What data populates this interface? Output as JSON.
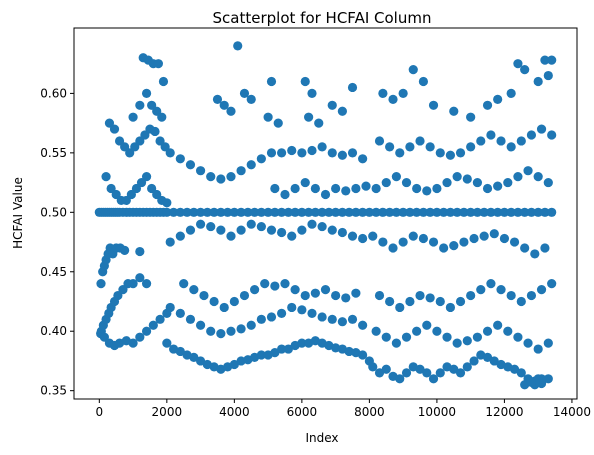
{
  "chart_data": {
    "type": "scatter",
    "title": "Scatterplot for HCFAI Column",
    "xlabel": "Index",
    "ylabel": "HCFAI Value",
    "xlim": [
      -750,
      14150
    ],
    "ylim": [
      0.343,
      0.655
    ],
    "xticks": [
      0,
      2000,
      4000,
      6000,
      8000,
      10000,
      12000,
      14000
    ],
    "yticks": [
      0.35,
      0.4,
      0.45,
      0.5,
      0.55,
      0.6
    ],
    "ytick_labels": [
      "0.35",
      "0.40",
      "0.45",
      "0.50",
      "0.55",
      "0.60"
    ],
    "grid": false,
    "marker_color": "#1f77b4",
    "points": [
      [
        0,
        0.5
      ],
      [
        60,
        0.5
      ],
      [
        120,
        0.5
      ],
      [
        180,
        0.5
      ],
      [
        240,
        0.5
      ],
      [
        300,
        0.5
      ],
      [
        360,
        0.5
      ],
      [
        420,
        0.5
      ],
      [
        480,
        0.5
      ],
      [
        540,
        0.5
      ],
      [
        600,
        0.5
      ],
      [
        700,
        0.5
      ],
      [
        800,
        0.5
      ],
      [
        900,
        0.5
      ],
      [
        1000,
        0.5
      ],
      [
        1100,
        0.5
      ],
      [
        1200,
        0.5
      ],
      [
        1300,
        0.5
      ],
      [
        1400,
        0.5
      ],
      [
        1500,
        0.5
      ],
      [
        1600,
        0.5
      ],
      [
        1700,
        0.5
      ],
      [
        1800,
        0.5
      ],
      [
        1900,
        0.5
      ],
      [
        2000,
        0.5
      ],
      [
        2200,
        0.5
      ],
      [
        2400,
        0.5
      ],
      [
        2600,
        0.5
      ],
      [
        2800,
        0.5
      ],
      [
        3000,
        0.5
      ],
      [
        3200,
        0.5
      ],
      [
        3400,
        0.5
      ],
      [
        3600,
        0.5
      ],
      [
        3800,
        0.5
      ],
      [
        4000,
        0.5
      ],
      [
        4200,
        0.5
      ],
      [
        4400,
        0.5
      ],
      [
        4600,
        0.5
      ],
      [
        4800,
        0.5
      ],
      [
        5000,
        0.5
      ],
      [
        5200,
        0.5
      ],
      [
        5400,
        0.5
      ],
      [
        5600,
        0.5
      ],
      [
        5800,
        0.5
      ],
      [
        6000,
        0.5
      ],
      [
        6200,
        0.5
      ],
      [
        6400,
        0.5
      ],
      [
        6600,
        0.5
      ],
      [
        6800,
        0.5
      ],
      [
        7000,
        0.5
      ],
      [
        7200,
        0.5
      ],
      [
        7400,
        0.5
      ],
      [
        7600,
        0.5
      ],
      [
        7800,
        0.5
      ],
      [
        8000,
        0.5
      ],
      [
        8200,
        0.5
      ],
      [
        8400,
        0.5
      ],
      [
        8600,
        0.5
      ],
      [
        8800,
        0.5
      ],
      [
        9000,
        0.5
      ],
      [
        9200,
        0.5
      ],
      [
        9400,
        0.5
      ],
      [
        9600,
        0.5
      ],
      [
        9800,
        0.5
      ],
      [
        10000,
        0.5
      ],
      [
        10200,
        0.5
      ],
      [
        10400,
        0.5
      ],
      [
        10600,
        0.5
      ],
      [
        10800,
        0.5
      ],
      [
        11000,
        0.5
      ],
      [
        11200,
        0.5
      ],
      [
        11400,
        0.5
      ],
      [
        11600,
        0.5
      ],
      [
        11800,
        0.5
      ],
      [
        12000,
        0.5
      ],
      [
        12200,
        0.5
      ],
      [
        12400,
        0.5
      ],
      [
        12600,
        0.5
      ],
      [
        12800,
        0.5
      ],
      [
        13000,
        0.5
      ],
      [
        13200,
        0.5
      ],
      [
        13400,
        0.5
      ],
      [
        50,
        0.44
      ],
      [
        100,
        0.45
      ],
      [
        150,
        0.455
      ],
      [
        200,
        0.46
      ],
      [
        260,
        0.465
      ],
      [
        320,
        0.47
      ],
      [
        400,
        0.465
      ],
      [
        500,
        0.47
      ],
      [
        620,
        0.47
      ],
      [
        750,
        0.468
      ],
      [
        1200,
        0.467
      ],
      [
        60,
        0.4
      ],
      [
        120,
        0.405
      ],
      [
        200,
        0.41
      ],
      [
        280,
        0.415
      ],
      [
        350,
        0.42
      ],
      [
        450,
        0.425
      ],
      [
        550,
        0.43
      ],
      [
        700,
        0.435
      ],
      [
        850,
        0.44
      ],
      [
        1000,
        0.44
      ],
      [
        1200,
        0.445
      ],
      [
        1400,
        0.44
      ],
      [
        40,
        0.398
      ],
      [
        150,
        0.395
      ],
      [
        300,
        0.39
      ],
      [
        450,
        0.388
      ],
      [
        600,
        0.39
      ],
      [
        800,
        0.392
      ],
      [
        1000,
        0.39
      ],
      [
        1200,
        0.395
      ],
      [
        1400,
        0.4
      ],
      [
        1600,
        0.405
      ],
      [
        1800,
        0.41
      ],
      [
        2000,
        0.415
      ],
      [
        2000,
        0.39
      ],
      [
        2200,
        0.385
      ],
      [
        2400,
        0.383
      ],
      [
        2600,
        0.38
      ],
      [
        2800,
        0.378
      ],
      [
        3000,
        0.375
      ],
      [
        3200,
        0.372
      ],
      [
        3400,
        0.37
      ],
      [
        3600,
        0.368
      ],
      [
        3800,
        0.37
      ],
      [
        4000,
        0.372
      ],
      [
        4200,
        0.375
      ],
      [
        4400,
        0.376
      ],
      [
        4600,
        0.378
      ],
      [
        4800,
        0.38
      ],
      [
        5000,
        0.38
      ],
      [
        5200,
        0.382
      ],
      [
        5400,
        0.385
      ],
      [
        5600,
        0.385
      ],
      [
        5800,
        0.388
      ],
      [
        6000,
        0.39
      ],
      [
        6200,
        0.39
      ],
      [
        6400,
        0.392
      ],
      [
        6600,
        0.39
      ],
      [
        6800,
        0.388
      ],
      [
        7000,
        0.386
      ],
      [
        7200,
        0.385
      ],
      [
        7400,
        0.383
      ],
      [
        7600,
        0.382
      ],
      [
        7800,
        0.38
      ],
      [
        8000,
        0.375
      ],
      [
        2100,
        0.42
      ],
      [
        2400,
        0.415
      ],
      [
        2700,
        0.41
      ],
      [
        3000,
        0.405
      ],
      [
        3300,
        0.4
      ],
      [
        3600,
        0.398
      ],
      [
        3900,
        0.4
      ],
      [
        4200,
        0.402
      ],
      [
        4500,
        0.405
      ],
      [
        4800,
        0.41
      ],
      [
        5100,
        0.412
      ],
      [
        5400,
        0.415
      ],
      [
        5700,
        0.42
      ],
      [
        6000,
        0.418
      ],
      [
        6300,
        0.415
      ],
      [
        6600,
        0.412
      ],
      [
        6900,
        0.41
      ],
      [
        7200,
        0.408
      ],
      [
        7500,
        0.41
      ],
      [
        7800,
        0.405
      ],
      [
        2500,
        0.44
      ],
      [
        2800,
        0.435
      ],
      [
        3100,
        0.43
      ],
      [
        3400,
        0.425
      ],
      [
        3700,
        0.42
      ],
      [
        4000,
        0.425
      ],
      [
        4300,
        0.43
      ],
      [
        4600,
        0.435
      ],
      [
        4900,
        0.44
      ],
      [
        5200,
        0.438
      ],
      [
        5500,
        0.44
      ],
      [
        5800,
        0.435
      ],
      [
        6100,
        0.43
      ],
      [
        6400,
        0.432
      ],
      [
        6700,
        0.435
      ],
      [
        7000,
        0.43
      ],
      [
        7300,
        0.428
      ],
      [
        7600,
        0.432
      ],
      [
        200,
        0.53
      ],
      [
        350,
        0.52
      ],
      [
        500,
        0.515
      ],
      [
        650,
        0.51
      ],
      [
        800,
        0.51
      ],
      [
        950,
        0.515
      ],
      [
        1100,
        0.52
      ],
      [
        1250,
        0.525
      ],
      [
        1400,
        0.53
      ],
      [
        1550,
        0.52
      ],
      [
        1700,
        0.515
      ],
      [
        1850,
        0.51
      ],
      [
        2000,
        0.508
      ],
      [
        300,
        0.575
      ],
      [
        450,
        0.57
      ],
      [
        600,
        0.56
      ],
      [
        750,
        0.555
      ],
      [
        900,
        0.55
      ],
      [
        1050,
        0.555
      ],
      [
        1200,
        0.56
      ],
      [
        1350,
        0.565
      ],
      [
        1500,
        0.57
      ],
      [
        1650,
        0.568
      ],
      [
        1800,
        0.56
      ],
      [
        1950,
        0.555
      ],
      [
        2100,
        0.55
      ],
      [
        2400,
        0.545
      ],
      [
        2700,
        0.54
      ],
      [
        3000,
        0.535
      ],
      [
        3300,
        0.53
      ],
      [
        3600,
        0.528
      ],
      [
        3900,
        0.53
      ],
      [
        4200,
        0.535
      ],
      [
        4500,
        0.54
      ],
      [
        4800,
        0.545
      ],
      [
        5100,
        0.55
      ],
      [
        5400,
        0.55
      ],
      [
        5700,
        0.552
      ],
      [
        6000,
        0.55
      ],
      [
        6300,
        0.552
      ],
      [
        6600,
        0.555
      ],
      [
        6900,
        0.55
      ],
      [
        7200,
        0.548
      ],
      [
        7500,
        0.55
      ],
      [
        7800,
        0.545
      ],
      [
        1000,
        0.58
      ],
      [
        1200,
        0.59
      ],
      [
        1400,
        0.6
      ],
      [
        1550,
        0.59
      ],
      [
        1700,
        0.585
      ],
      [
        1850,
        0.58
      ],
      [
        1300,
        0.63
      ],
      [
        1450,
        0.628
      ],
      [
        1600,
        0.625
      ],
      [
        1750,
        0.625
      ],
      [
        1900,
        0.61
      ],
      [
        3500,
        0.595
      ],
      [
        3700,
        0.59
      ],
      [
        3900,
        0.585
      ],
      [
        4100,
        0.64
      ],
      [
        4300,
        0.6
      ],
      [
        4500,
        0.595
      ],
      [
        5100,
        0.61
      ],
      [
        5000,
        0.58
      ],
      [
        5300,
        0.575
      ],
      [
        6100,
        0.61
      ],
      [
        6300,
        0.6
      ],
      [
        6200,
        0.58
      ],
      [
        6500,
        0.575
      ],
      [
        6900,
        0.59
      ],
      [
        7200,
        0.585
      ],
      [
        7500,
        0.605
      ],
      [
        2100,
        0.475
      ],
      [
        2400,
        0.48
      ],
      [
        2700,
        0.485
      ],
      [
        3000,
        0.49
      ],
      [
        3300,
        0.488
      ],
      [
        3600,
        0.485
      ],
      [
        3900,
        0.48
      ],
      [
        4200,
        0.485
      ],
      [
        4500,
        0.49
      ],
      [
        4800,
        0.488
      ],
      [
        5100,
        0.485
      ],
      [
        5400,
        0.483
      ],
      [
        5700,
        0.48
      ],
      [
        6000,
        0.485
      ],
      [
        6300,
        0.49
      ],
      [
        6600,
        0.488
      ],
      [
        6900,
        0.485
      ],
      [
        7200,
        0.483
      ],
      [
        7500,
        0.48
      ],
      [
        7800,
        0.478
      ],
      [
        5200,
        0.52
      ],
      [
        5500,
        0.515
      ],
      [
        5800,
        0.52
      ],
      [
        6100,
        0.525
      ],
      [
        6400,
        0.52
      ],
      [
        6700,
        0.515
      ],
      [
        7000,
        0.52
      ],
      [
        7300,
        0.518
      ],
      [
        7600,
        0.52
      ],
      [
        7900,
        0.522
      ],
      [
        8100,
        0.37
      ],
      [
        8300,
        0.365
      ],
      [
        8500,
        0.368
      ],
      [
        8700,
        0.362
      ],
      [
        8900,
        0.36
      ],
      [
        9100,
        0.365
      ],
      [
        9300,
        0.37
      ],
      [
        9500,
        0.368
      ],
      [
        9700,
        0.365
      ],
      [
        9900,
        0.36
      ],
      [
        10100,
        0.365
      ],
      [
        10300,
        0.37
      ],
      [
        10500,
        0.368
      ],
      [
        10700,
        0.365
      ],
      [
        10900,
        0.37
      ],
      [
        11100,
        0.375
      ],
      [
        11300,
        0.38
      ],
      [
        11500,
        0.378
      ],
      [
        11700,
        0.375
      ],
      [
        11900,
        0.372
      ],
      [
        12100,
        0.37
      ],
      [
        12300,
        0.368
      ],
      [
        12500,
        0.365
      ],
      [
        12700,
        0.36
      ],
      [
        12900,
        0.358
      ],
      [
        13100,
        0.356
      ],
      [
        13300,
        0.36
      ],
      [
        8200,
        0.4
      ],
      [
        8500,
        0.395
      ],
      [
        8800,
        0.39
      ],
      [
        9100,
        0.395
      ],
      [
        9400,
        0.4
      ],
      [
        9700,
        0.405
      ],
      [
        10000,
        0.4
      ],
      [
        10300,
        0.395
      ],
      [
        10600,
        0.39
      ],
      [
        10900,
        0.392
      ],
      [
        11200,
        0.395
      ],
      [
        11500,
        0.4
      ],
      [
        11800,
        0.405
      ],
      [
        12100,
        0.4
      ],
      [
        12400,
        0.395
      ],
      [
        12700,
        0.39
      ],
      [
        13000,
        0.385
      ],
      [
        13300,
        0.39
      ],
      [
        8300,
        0.43
      ],
      [
        8600,
        0.425
      ],
      [
        8900,
        0.42
      ],
      [
        9200,
        0.425
      ],
      [
        9500,
        0.43
      ],
      [
        9800,
        0.428
      ],
      [
        10100,
        0.425
      ],
      [
        10400,
        0.42
      ],
      [
        10700,
        0.425
      ],
      [
        11000,
        0.43
      ],
      [
        11300,
        0.435
      ],
      [
        11600,
        0.44
      ],
      [
        11900,
        0.435
      ],
      [
        12200,
        0.43
      ],
      [
        12500,
        0.425
      ],
      [
        12800,
        0.43
      ],
      [
        13100,
        0.435
      ],
      [
        13400,
        0.44
      ],
      [
        8100,
        0.48
      ],
      [
        8400,
        0.475
      ],
      [
        8700,
        0.47
      ],
      [
        9000,
        0.475
      ],
      [
        9300,
        0.48
      ],
      [
        9600,
        0.478
      ],
      [
        9900,
        0.475
      ],
      [
        10200,
        0.47
      ],
      [
        10500,
        0.472
      ],
      [
        10800,
        0.475
      ],
      [
        11100,
        0.478
      ],
      [
        11400,
        0.48
      ],
      [
        11700,
        0.482
      ],
      [
        12000,
        0.478
      ],
      [
        12300,
        0.475
      ],
      [
        12600,
        0.47
      ],
      [
        12900,
        0.465
      ],
      [
        13200,
        0.47
      ],
      [
        8200,
        0.52
      ],
      [
        8500,
        0.525
      ],
      [
        8800,
        0.53
      ],
      [
        9100,
        0.525
      ],
      [
        9400,
        0.52
      ],
      [
        9700,
        0.518
      ],
      [
        10000,
        0.52
      ],
      [
        10300,
        0.525
      ],
      [
        10600,
        0.53
      ],
      [
        10900,
        0.528
      ],
      [
        11200,
        0.525
      ],
      [
        11500,
        0.52
      ],
      [
        11800,
        0.522
      ],
      [
        12100,
        0.525
      ],
      [
        12400,
        0.53
      ],
      [
        12700,
        0.535
      ],
      [
        13000,
        0.53
      ],
      [
        13300,
        0.525
      ],
      [
        8300,
        0.56
      ],
      [
        8600,
        0.555
      ],
      [
        8900,
        0.55
      ],
      [
        9200,
        0.555
      ],
      [
        9500,
        0.56
      ],
      [
        9800,
        0.555
      ],
      [
        10100,
        0.55
      ],
      [
        10400,
        0.548
      ],
      [
        10700,
        0.55
      ],
      [
        11000,
        0.555
      ],
      [
        11300,
        0.56
      ],
      [
        11600,
        0.565
      ],
      [
        11900,
        0.56
      ],
      [
        12200,
        0.555
      ],
      [
        12500,
        0.56
      ],
      [
        12800,
        0.565
      ],
      [
        13100,
        0.57
      ],
      [
        13400,
        0.565
      ],
      [
        8400,
        0.6
      ],
      [
        8700,
        0.595
      ],
      [
        9000,
        0.6
      ],
      [
        9300,
        0.62
      ],
      [
        9600,
        0.61
      ],
      [
        9900,
        0.59
      ],
      [
        10500,
        0.585
      ],
      [
        11000,
        0.58
      ],
      [
        11500,
        0.59
      ],
      [
        11800,
        0.595
      ],
      [
        12200,
        0.6
      ],
      [
        12400,
        0.625
      ],
      [
        12600,
        0.62
      ],
      [
        13000,
        0.61
      ],
      [
        13200,
        0.628
      ],
      [
        13400,
        0.628
      ],
      [
        13300,
        0.615
      ],
      [
        12600,
        0.355
      ],
      [
        12900,
        0.355
      ],
      [
        13100,
        0.36
      ],
      [
        13000,
        0.36
      ],
      [
        12800,
        0.357
      ]
    ]
  }
}
